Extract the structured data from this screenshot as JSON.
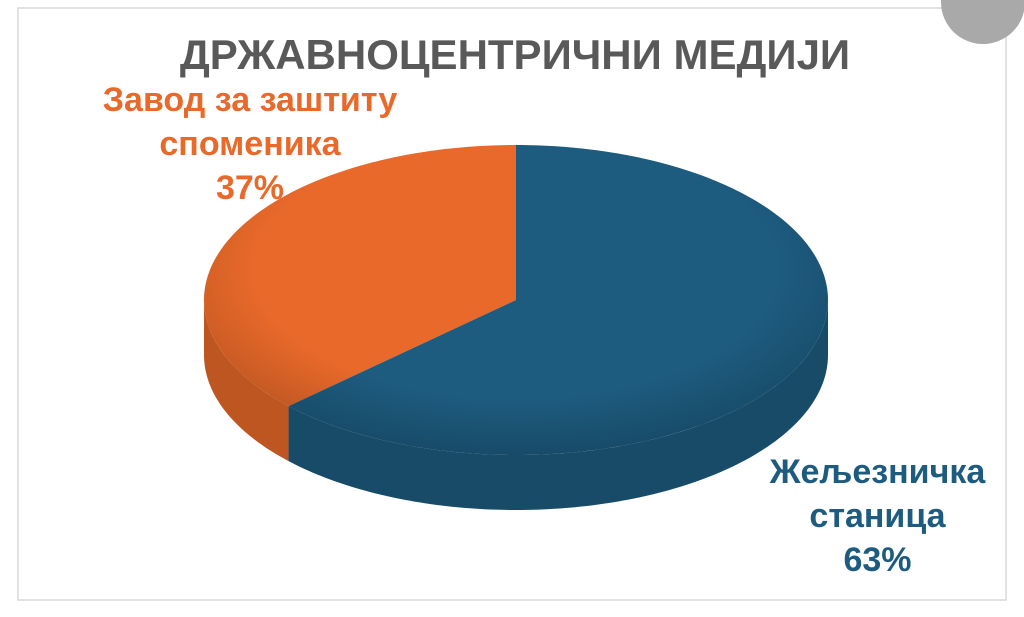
{
  "chart_data": {
    "type": "pie",
    "title": "ДРЖАВНОЦЕНТРИЧНИ МЕДИЈИ",
    "categories": [
      "Завод за заштиту споменика",
      "Жељезничка станица"
    ],
    "values": [
      37,
      63
    ],
    "value_labels": [
      "37%",
      "63%"
    ],
    "colors": [
      "#e8692a",
      "#1d5b7f"
    ]
  }
}
